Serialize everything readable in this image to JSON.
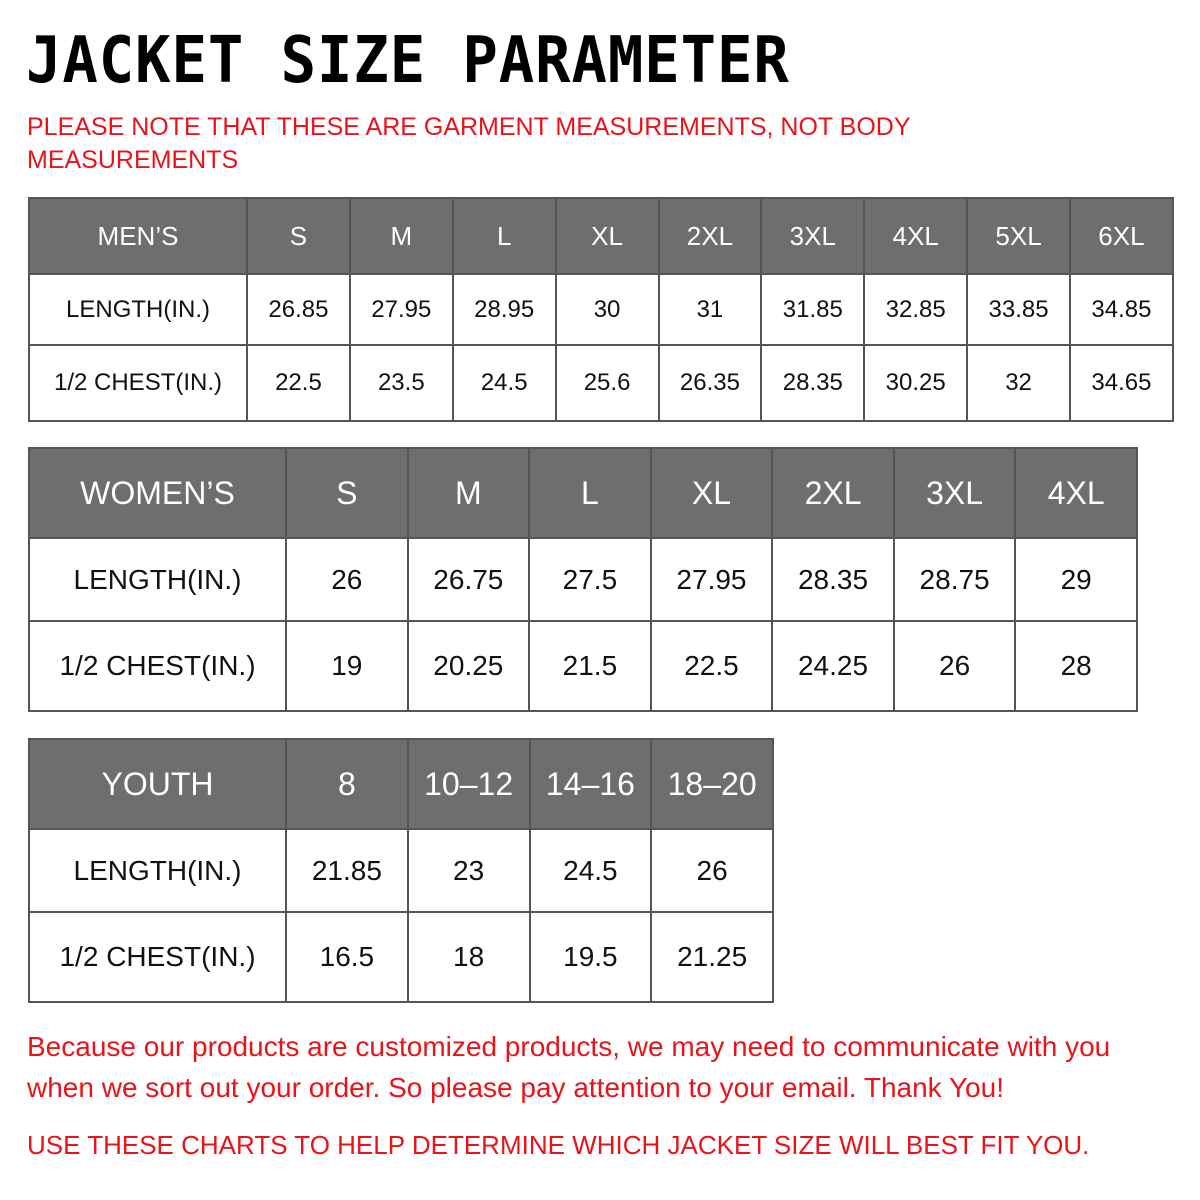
{
  "title": "JACKET SIZE PARAMETER",
  "note": "PLEASE NOTE THAT THESE ARE GARMENT MEASUREMENTS, NOT BODY MEASUREMENTS",
  "colors": {
    "header_bg": "#6e6e6e",
    "accent_red": "#e8141a"
  },
  "tables": [
    {
      "header": [
        "MEN’S",
        "S",
        "M",
        "L",
        "XL",
        "2XL",
        "3XL",
        "4XL",
        "5XL",
        "6XL"
      ],
      "rows": [
        [
          "LENGTH(IN.)",
          "26.85",
          "27.95",
          "28.95",
          "30",
          "31",
          "31.85",
          "32.85",
          "33.85",
          "34.85"
        ],
        [
          "1/2 CHEST(IN.)",
          "22.5",
          "23.5",
          "24.5",
          "25.6",
          "26.35",
          "28.35",
          "30.25",
          "32",
          "34.65"
        ]
      ]
    },
    {
      "header": [
        "WOMEN’S",
        "S",
        "M",
        "L",
        "XL",
        "2XL",
        "3XL",
        "4XL"
      ],
      "rows": [
        [
          "LENGTH(IN.)",
          "26",
          "26.75",
          "27.5",
          "27.95",
          "28.35",
          "28.75",
          "29"
        ],
        [
          "1/2 CHEST(IN.)",
          "19",
          "20.25",
          "21.5",
          "22.5",
          "24.25",
          "26",
          "28"
        ]
      ]
    },
    {
      "header": [
        "YOUTH",
        "8",
        "10–12",
        "14–16",
        "18–20"
      ],
      "rows": [
        [
          "LENGTH(IN.)",
          "21.85",
          "23",
          "24.5",
          "26"
        ],
        [
          "1/2 CHEST(IN.)",
          "16.5",
          "18",
          "19.5",
          "21.25"
        ]
      ]
    }
  ],
  "footer": {
    "message": "Because our products are customized products, we may need to communicate with you when we sort out your order. So please pay attention to your email. Thank You!",
    "advice": "USE THESE CHARTS TO HELP DETERMINE WHICH JACKET SIZE WILL BEST FIT YOU."
  }
}
